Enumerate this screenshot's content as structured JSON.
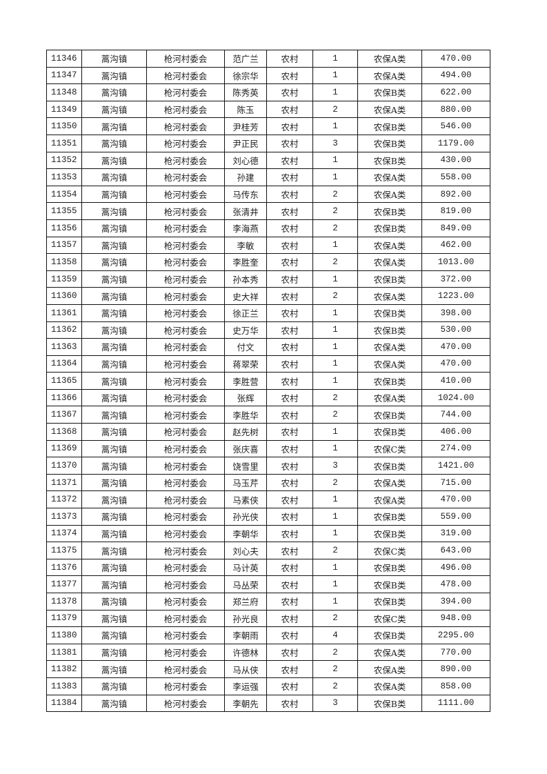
{
  "rows": [
    [
      "11346",
      "蒿沟镇",
      "枪河村委会",
      "范广兰",
      "农村",
      "1",
      "农保A类",
      "470.00"
    ],
    [
      "11347",
      "蒿沟镇",
      "枪河村委会",
      "徐宗华",
      "农村",
      "1",
      "农保A类",
      "494.00"
    ],
    [
      "11348",
      "蒿沟镇",
      "枪河村委会",
      "陈秀英",
      "农村",
      "1",
      "农保B类",
      "622.00"
    ],
    [
      "11349",
      "蒿沟镇",
      "枪河村委会",
      "陈玉",
      "农村",
      "2",
      "农保A类",
      "880.00"
    ],
    [
      "11350",
      "蒿沟镇",
      "枪河村委会",
      "尹桂芳",
      "农村",
      "1",
      "农保B类",
      "546.00"
    ],
    [
      "11351",
      "蒿沟镇",
      "枪河村委会",
      "尹正民",
      "农村",
      "3",
      "农保B类",
      "1179.00"
    ],
    [
      "11352",
      "蒿沟镇",
      "枪河村委会",
      "刘心德",
      "农村",
      "1",
      "农保B类",
      "430.00"
    ],
    [
      "11353",
      "蒿沟镇",
      "枪河村委会",
      "孙建",
      "农村",
      "1",
      "农保A类",
      "558.00"
    ],
    [
      "11354",
      "蒿沟镇",
      "枪河村委会",
      "马传东",
      "农村",
      "2",
      "农保A类",
      "892.00"
    ],
    [
      "11355",
      "蒿沟镇",
      "枪河村委会",
      "张清井",
      "农村",
      "2",
      "农保B类",
      "819.00"
    ],
    [
      "11356",
      "蒿沟镇",
      "枪河村委会",
      "李海燕",
      "农村",
      "2",
      "农保B类",
      "849.00"
    ],
    [
      "11357",
      "蒿沟镇",
      "枪河村委会",
      "李敏",
      "农村",
      "1",
      "农保A类",
      "462.00"
    ],
    [
      "11358",
      "蒿沟镇",
      "枪河村委会",
      "李胜奎",
      "农村",
      "2",
      "农保A类",
      "1013.00"
    ],
    [
      "11359",
      "蒿沟镇",
      "枪河村委会",
      "孙本秀",
      "农村",
      "1",
      "农保B类",
      "372.00"
    ],
    [
      "11360",
      "蒿沟镇",
      "枪河村委会",
      "史大祥",
      "农村",
      "2",
      "农保A类",
      "1223.00"
    ],
    [
      "11361",
      "蒿沟镇",
      "枪河村委会",
      "徐正兰",
      "农村",
      "1",
      "农保B类",
      "398.00"
    ],
    [
      "11362",
      "蒿沟镇",
      "枪河村委会",
      "史万华",
      "农村",
      "1",
      "农保B类",
      "530.00"
    ],
    [
      "11363",
      "蒿沟镇",
      "枪河村委会",
      "付文",
      "农村",
      "1",
      "农保A类",
      "470.00"
    ],
    [
      "11364",
      "蒿沟镇",
      "枪河村委会",
      "蒋翠荣",
      "农村",
      "1",
      "农保A类",
      "470.00"
    ],
    [
      "11365",
      "蒿沟镇",
      "枪河村委会",
      "李胜营",
      "农村",
      "1",
      "农保B类",
      "410.00"
    ],
    [
      "11366",
      "蒿沟镇",
      "枪河村委会",
      "张辉",
      "农村",
      "2",
      "农保A类",
      "1024.00"
    ],
    [
      "11367",
      "蒿沟镇",
      "枪河村委会",
      "李胜华",
      "农村",
      "2",
      "农保B类",
      "744.00"
    ],
    [
      "11368",
      "蒿沟镇",
      "枪河村委会",
      "赵先树",
      "农村",
      "1",
      "农保B类",
      "406.00"
    ],
    [
      "11369",
      "蒿沟镇",
      "枪河村委会",
      "张庆喜",
      "农村",
      "1",
      "农保C类",
      "274.00"
    ],
    [
      "11370",
      "蒿沟镇",
      "枪河村委会",
      "饶雪里",
      "农村",
      "3",
      "农保B类",
      "1421.00"
    ],
    [
      "11371",
      "蒿沟镇",
      "枪河村委会",
      "马玉芹",
      "农村",
      "2",
      "农保A类",
      "715.00"
    ],
    [
      "11372",
      "蒿沟镇",
      "枪河村委会",
      "马素侠",
      "农村",
      "1",
      "农保A类",
      "470.00"
    ],
    [
      "11373",
      "蒿沟镇",
      "枪河村委会",
      "孙光侠",
      "农村",
      "1",
      "农保B类",
      "559.00"
    ],
    [
      "11374",
      "蒿沟镇",
      "枪河村委会",
      "李朝华",
      "农村",
      "1",
      "农保B类",
      "319.00"
    ],
    [
      "11375",
      "蒿沟镇",
      "枪河村委会",
      "刘心夫",
      "农村",
      "2",
      "农保C类",
      "643.00"
    ],
    [
      "11376",
      "蒿沟镇",
      "枪河村委会",
      "马计英",
      "农村",
      "1",
      "农保B类",
      "496.00"
    ],
    [
      "11377",
      "蒿沟镇",
      "枪河村委会",
      "马丛荣",
      "农村",
      "1",
      "农保B类",
      "478.00"
    ],
    [
      "11378",
      "蒿沟镇",
      "枪河村委会",
      "郑兰府",
      "农村",
      "1",
      "农保B类",
      "394.00"
    ],
    [
      "11379",
      "蒿沟镇",
      "枪河村委会",
      "孙光良",
      "农村",
      "2",
      "农保C类",
      "948.00"
    ],
    [
      "11380",
      "蒿沟镇",
      "枪河村委会",
      "李朝雨",
      "农村",
      "4",
      "农保B类",
      "2295.00"
    ],
    [
      "11381",
      "蒿沟镇",
      "枪河村委会",
      "许德林",
      "农村",
      "2",
      "农保A类",
      "770.00"
    ],
    [
      "11382",
      "蒿沟镇",
      "枪河村委会",
      "马从侠",
      "农村",
      "2",
      "农保A类",
      "890.00"
    ],
    [
      "11383",
      "蒿沟镇",
      "枪河村委会",
      "李运强",
      "农村",
      "2",
      "农保A类",
      "858.00"
    ],
    [
      "11384",
      "蒿沟镇",
      "枪河村委会",
      "李朝先",
      "农村",
      "3",
      "农保B类",
      "1111.00"
    ]
  ]
}
